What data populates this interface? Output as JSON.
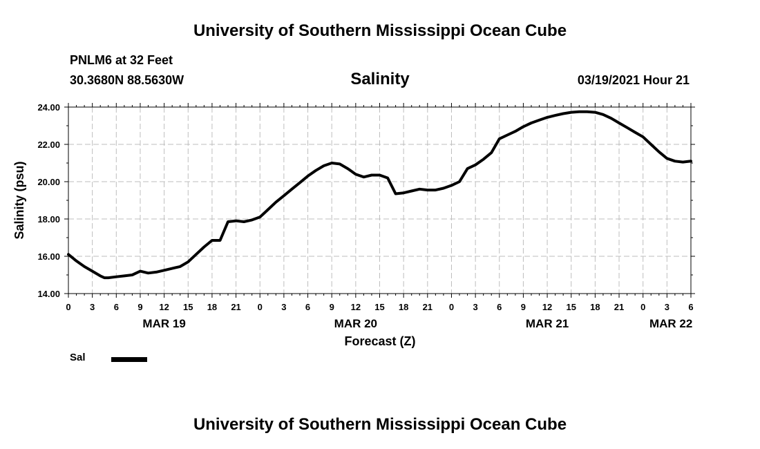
{
  "header": {
    "title": "University of Southern Mississippi Ocean Cube",
    "station": "PNLM6 at 32 Feet",
    "coordinates": "30.3680N 88.5630W",
    "valid_time": "03/19/2021 Hour 21"
  },
  "footer": {
    "title": "University of Southern Mississippi Ocean Cube"
  },
  "legend": {
    "label": "Sal"
  },
  "chart_data": {
    "type": "line",
    "title": "Salinity",
    "xlabel": "Forecast (Z)",
    "ylabel": "Salinity (psu)",
    "xlim": [
      0,
      78
    ],
    "ylim": [
      14,
      24
    ],
    "grid": true,
    "y_ticks": [
      {
        "value": 14,
        "label": "14.00"
      },
      {
        "value": 16,
        "label": "16.00"
      },
      {
        "value": 18,
        "label": "18.00"
      },
      {
        "value": 20,
        "label": "20.00"
      },
      {
        "value": 22,
        "label": "22.00"
      },
      {
        "value": 24,
        "label": "24.00"
      }
    ],
    "x_ticks": [
      {
        "value": 0,
        "label": "0"
      },
      {
        "value": 3,
        "label": "3"
      },
      {
        "value": 6,
        "label": "6"
      },
      {
        "value": 9,
        "label": "9"
      },
      {
        "value": 12,
        "label": "12"
      },
      {
        "value": 15,
        "label": "15"
      },
      {
        "value": 18,
        "label": "18"
      },
      {
        "value": 21,
        "label": "21"
      },
      {
        "value": 24,
        "label": "0"
      },
      {
        "value": 27,
        "label": "3"
      },
      {
        "value": 30,
        "label": "6"
      },
      {
        "value": 33,
        "label": "9"
      },
      {
        "value": 36,
        "label": "12"
      },
      {
        "value": 39,
        "label": "15"
      },
      {
        "value": 42,
        "label": "18"
      },
      {
        "value": 45,
        "label": "21"
      },
      {
        "value": 48,
        "label": "0"
      },
      {
        "value": 51,
        "label": "3"
      },
      {
        "value": 54,
        "label": "6"
      },
      {
        "value": 57,
        "label": "9"
      },
      {
        "value": 60,
        "label": "12"
      },
      {
        "value": 63,
        "label": "15"
      },
      {
        "value": 66,
        "label": "18"
      },
      {
        "value": 69,
        "label": "21"
      },
      {
        "value": 72,
        "label": "0"
      },
      {
        "value": 75,
        "label": "3"
      },
      {
        "value": 78,
        "label": "6"
      }
    ],
    "date_labels": [
      {
        "value": 12,
        "label": "MAR 19"
      },
      {
        "value": 36,
        "label": "MAR 20"
      },
      {
        "value": 60,
        "label": "MAR 21"
      },
      {
        "value": 75.5,
        "label": "MAR 22"
      }
    ],
    "series": [
      {
        "name": "Sal",
        "color": "#000000",
        "x": [
          0,
          1,
          2,
          3,
          4,
          4.5,
          5,
          6,
          7,
          8,
          9,
          10,
          11,
          12,
          13,
          14,
          15,
          16,
          17,
          18,
          19,
          20,
          21,
          22,
          23,
          24,
          25,
          26,
          27,
          28,
          29,
          30,
          31,
          32,
          33,
          34,
          35,
          36,
          37,
          38,
          39,
          40,
          41,
          42,
          43,
          44,
          45,
          46,
          47,
          48,
          49,
          50,
          51,
          52,
          53,
          54,
          55,
          56,
          57,
          58,
          59,
          60,
          61,
          62,
          63,
          64,
          65,
          66,
          67,
          68,
          69,
          70,
          71,
          72,
          73,
          74,
          75,
          76,
          77,
          78
        ],
        "values": [
          16.1,
          15.75,
          15.45,
          15.2,
          14.95,
          14.85,
          14.85,
          14.9,
          14.95,
          15.0,
          15.2,
          15.1,
          15.15,
          15.25,
          15.35,
          15.45,
          15.7,
          16.1,
          16.5,
          16.85,
          16.85,
          17.85,
          17.9,
          17.85,
          17.95,
          18.1,
          18.5,
          18.9,
          19.25,
          19.6,
          19.95,
          20.3,
          20.6,
          20.85,
          21.0,
          20.95,
          20.7,
          20.4,
          20.25,
          20.35,
          20.35,
          20.2,
          19.35,
          19.4,
          19.5,
          19.6,
          19.55,
          19.55,
          19.65,
          19.8,
          20.0,
          20.7,
          20.9,
          21.2,
          21.55,
          22.3,
          22.5,
          22.7,
          22.95,
          23.15,
          23.3,
          23.45,
          23.55,
          23.65,
          23.72,
          23.75,
          23.75,
          23.72,
          23.6,
          23.4,
          23.15,
          22.9,
          22.65,
          22.4,
          22.0,
          21.6,
          21.25,
          21.1,
          21.05,
          21.1
        ]
      }
    ]
  }
}
